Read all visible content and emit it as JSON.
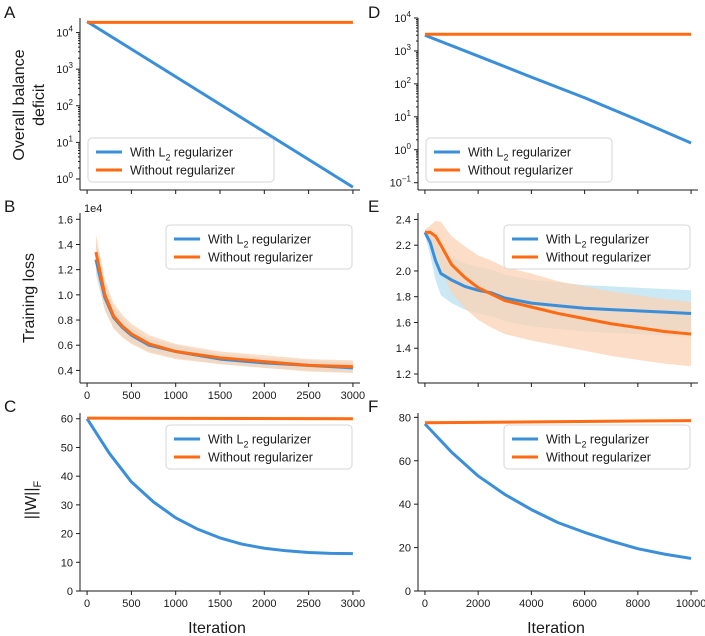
{
  "figure": {
    "colors": {
      "l2": "#3b8fd9",
      "noreg": "#ff6a12",
      "l2_band": "#b9e2f0",
      "noreg_band": "#fbd2b4"
    }
  },
  "chart_data": [
    {
      "id": "A",
      "panel_label": "A",
      "type": "line",
      "ylabel_lines": [
        "Overall balance",
        "deficit"
      ],
      "xscale": "linear",
      "yscale": "log",
      "xlim": [
        -80,
        3080
      ],
      "ylim": [
        0.5,
        25000
      ],
      "xticks": [
        0,
        500,
        1000,
        1500,
        2000,
        2500,
        3000
      ],
      "show_xtick_labels": false,
      "ytick_values": [
        1,
        10,
        100,
        1000,
        10000
      ],
      "ytick_labels": [
        "10^0",
        "10^1",
        "10^2",
        "10^3",
        "10^4"
      ],
      "legend_position": "lower-left",
      "series": [
        {
          "name": "With L2 regularizer",
          "key": "l2",
          "x": [
            0,
            3000
          ],
          "y": [
            20000,
            0.6
          ]
        },
        {
          "name": "Without regularizer",
          "key": "noreg",
          "x": [
            0,
            3000
          ],
          "y": [
            19000,
            19000
          ]
        }
      ]
    },
    {
      "id": "B",
      "panel_label": "B",
      "type": "line",
      "ylabel_lines": [
        "Training loss"
      ],
      "offset_text": "1e4",
      "xscale": "linear",
      "yscale": "linear",
      "xlim": [
        -80,
        3080
      ],
      "ylim": [
        0.3,
        1.65
      ],
      "xticks": [
        0,
        500,
        1000,
        1500,
        2000,
        2500,
        3000
      ],
      "show_xtick_labels": true,
      "ytick_values": [
        0.4,
        0.6,
        0.8,
        1.0,
        1.2,
        1.4,
        1.6
      ],
      "ytick_labels": [
        "0.4",
        "0.6",
        "0.8",
        "1.0",
        "1.2",
        "1.4",
        "1.6"
      ],
      "legend_position": "upper-right",
      "series": [
        {
          "name": "With L2 regularizer",
          "key": "l2",
          "x": [
            100,
            200,
            300,
            400,
            500,
            700,
            1000,
            1500,
            2000,
            2500,
            3000
          ],
          "y": [
            1.28,
            0.98,
            0.82,
            0.74,
            0.68,
            0.6,
            0.55,
            0.49,
            0.46,
            0.44,
            0.42
          ],
          "band": [
            0.12,
            0.1,
            0.08,
            0.07,
            0.06,
            0.05,
            0.05,
            0.04,
            0.04,
            0.04,
            0.04
          ]
        },
        {
          "name": "Without regularizer",
          "key": "noreg",
          "x": [
            100,
            200,
            300,
            400,
            500,
            700,
            1000,
            1500,
            2000,
            2500,
            3000
          ],
          "y": [
            1.34,
            1.0,
            0.83,
            0.75,
            0.69,
            0.61,
            0.55,
            0.5,
            0.47,
            0.44,
            0.43
          ],
          "band": [
            0.14,
            0.12,
            0.1,
            0.09,
            0.08,
            0.07,
            0.06,
            0.05,
            0.05,
            0.05,
            0.05
          ]
        }
      ]
    },
    {
      "id": "C",
      "panel_label": "C",
      "type": "line",
      "ylabel_lines": [
        "||W||F"
      ],
      "xscale": "linear",
      "yscale": "linear",
      "xlim": [
        -80,
        3080
      ],
      "ylim": [
        0,
        62
      ],
      "xticks": [
        0,
        500,
        1000,
        1500,
        2000,
        2500,
        3000
      ],
      "show_xtick_labels": true,
      "ytick_values": [
        0,
        10,
        20,
        30,
        40,
        50,
        60
      ],
      "ytick_labels": [
        "0",
        "10",
        "20",
        "30",
        "40",
        "50",
        "60"
      ],
      "xlabel": "Iteration",
      "legend_position": "upper-right",
      "series": [
        {
          "name": "With L2 regularizer",
          "key": "l2",
          "x": [
            0,
            250,
            500,
            750,
            1000,
            1250,
            1500,
            1750,
            2000,
            2250,
            2500,
            2750,
            3000
          ],
          "y": [
            60,
            48,
            38,
            31,
            25.5,
            21.5,
            18.5,
            16.3,
            14.9,
            14,
            13.4,
            13.1,
            13
          ]
        },
        {
          "name": "Without regularizer",
          "key": "noreg",
          "x": [
            0,
            3000
          ],
          "y": [
            60.2,
            60
          ]
        }
      ]
    },
    {
      "id": "D",
      "panel_label": "D",
      "type": "line",
      "xscale": "linear",
      "yscale": "log",
      "xlim": [
        -260,
        10260
      ],
      "ylim": [
        0.06,
        10000
      ],
      "xticks": [
        0,
        2000,
        4000,
        6000,
        8000,
        10000
      ],
      "show_xtick_labels": false,
      "ytick_values": [
        0.1,
        1,
        10,
        100,
        1000,
        10000
      ],
      "ytick_labels": [
        "10^-1",
        "10^0",
        "10^1",
        "10^2",
        "10^3",
        "10^4"
      ],
      "legend_position": "lower-left",
      "series": [
        {
          "name": "With L2 regularizer",
          "key": "l2",
          "x": [
            0,
            2000,
            4000,
            6000,
            8000,
            10000
          ],
          "y": [
            3000,
            700,
            160,
            38,
            8,
            1.6
          ]
        },
        {
          "name": "Without regularizer",
          "key": "noreg",
          "x": [
            0,
            10000
          ],
          "y": [
            3200,
            3200
          ]
        }
      ]
    },
    {
      "id": "E",
      "panel_label": "E",
      "type": "line",
      "xscale": "linear",
      "yscale": "linear",
      "xlim": [
        -260,
        10260
      ],
      "ylim": [
        1.13,
        2.45
      ],
      "xticks": [
        0,
        2000,
        4000,
        6000,
        8000,
        10000
      ],
      "show_xtick_labels": false,
      "ytick_values": [
        1.2,
        1.4,
        1.6,
        1.8,
        2.0,
        2.2,
        2.4
      ],
      "ytick_labels": [
        "1.2",
        "1.4",
        "1.6",
        "1.8",
        "2.0",
        "2.2",
        "2.4"
      ],
      "legend_position": "upper-right",
      "series": [
        {
          "name": "With L2 regularizer",
          "key": "l2",
          "x": [
            0,
            200,
            400,
            600,
            1000,
            1500,
            2000,
            2500,
            3000,
            4000,
            5000,
            6000,
            7000,
            8000,
            9000,
            10000
          ],
          "y": [
            2.3,
            2.22,
            2.08,
            1.98,
            1.93,
            1.88,
            1.85,
            1.83,
            1.79,
            1.75,
            1.73,
            1.71,
            1.7,
            1.69,
            1.68,
            1.67
          ],
          "band": [
            0.02,
            0.1,
            0.15,
            0.17,
            0.18,
            0.18,
            0.18,
            0.18,
            0.18,
            0.18,
            0.18,
            0.18,
            0.18,
            0.18,
            0.18,
            0.18
          ]
        },
        {
          "name": "Without regularizer",
          "key": "noreg",
          "x": [
            0,
            200,
            400,
            600,
            1000,
            1500,
            2000,
            2500,
            3000,
            4000,
            5000,
            6000,
            7000,
            8000,
            9000,
            10000
          ],
          "y": [
            2.3,
            2.3,
            2.27,
            2.2,
            2.05,
            1.95,
            1.87,
            1.82,
            1.77,
            1.72,
            1.67,
            1.63,
            1.59,
            1.56,
            1.53,
            1.51
          ],
          "band": [
            0.02,
            0.05,
            0.12,
            0.18,
            0.22,
            0.24,
            0.25,
            0.26,
            0.26,
            0.26,
            0.25,
            0.25,
            0.25,
            0.25,
            0.25,
            0.25
          ]
        }
      ]
    },
    {
      "id": "F",
      "panel_label": "F",
      "type": "line",
      "xscale": "linear",
      "yscale": "linear",
      "xlim": [
        -260,
        10260
      ],
      "ylim": [
        0,
        82
      ],
      "xticks": [
        0,
        2000,
        4000,
        6000,
        8000,
        10000
      ],
      "show_xtick_labels": true,
      "ytick_values": [
        0,
        20,
        40,
        60,
        80
      ],
      "ytick_labels": [
        "0",
        "20",
        "40",
        "60",
        "80"
      ],
      "xlabel": "Iteration",
      "legend_position": "upper-right",
      "series": [
        {
          "name": "With L2 regularizer",
          "key": "l2",
          "x": [
            0,
            1000,
            2000,
            3000,
            4000,
            5000,
            6000,
            7000,
            8000,
            9000,
            10000
          ],
          "y": [
            77,
            64,
            53,
            44.5,
            37.5,
            31.5,
            27,
            23,
            19.5,
            17,
            15
          ]
        },
        {
          "name": "Without regularizer",
          "key": "noreg",
          "x": [
            0,
            10000
          ],
          "y": [
            77.5,
            78.5
          ]
        }
      ]
    }
  ]
}
